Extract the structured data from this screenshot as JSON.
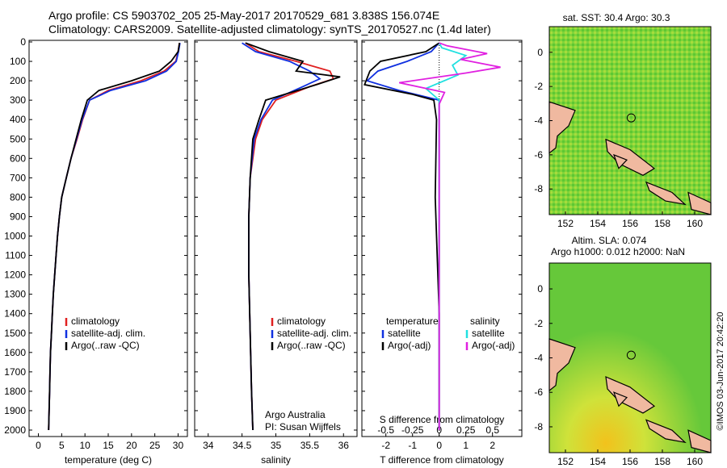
{
  "title_line1": "Argo profile: CS 5903702_205 25-May-2017 20170529_681 3.838S 156.074E",
  "title_line2": "Climatology: CARS2009. Satellite-adjusted climatology: synTS_20170527.nc (1.4d later)",
  "sst_title": "sat. SST: 30.4  Argo: 30.3",
  "sla_title_1": "Altim. SLA: 0.074",
  "sla_title_2": "Argo h1000: 0.012 h2000: NaN",
  "credit": "©IMOS 03-Jun-2017 20:42:20",
  "argo_note_1": "Argo Australia",
  "argo_note_2": "PI: Susan Wijffels",
  "colors": {
    "climatology": "#e02020",
    "satellite": "#1030e0",
    "argo": "#000000",
    "sat_s": "#20e0e0",
    "argo_s": "#e020e0"
  },
  "chart_data": [
    {
      "type": "line",
      "xlabel": "temperature (deg C)",
      "xlim": [
        -2,
        32
      ],
      "ylim": [
        2100,
        0
      ],
      "xticks": [
        0,
        5,
        10,
        15,
        20,
        25,
        30
      ],
      "yticks": [
        0,
        100,
        200,
        300,
        400,
        500,
        600,
        700,
        800,
        900,
        1000,
        1100,
        1200,
        1300,
        1400,
        1500,
        1600,
        1700,
        1800,
        1900,
        2000
      ],
      "legend": [
        "climatology",
        "satellite-adj. clim.",
        "Argo(..raw -QC)"
      ],
      "series": [
        {
          "name": "climatology",
          "color": "climatology",
          "points": [
            [
              30.3,
              5
            ],
            [
              30,
              50
            ],
            [
              29.5,
              100
            ],
            [
              27,
              150
            ],
            [
              22,
              200
            ],
            [
              15,
              250
            ],
            [
              11,
              300
            ],
            [
              9.5,
              400
            ],
            [
              8.3,
              500
            ],
            [
              7,
              600
            ],
            [
              6,
              700
            ],
            [
              5,
              800
            ],
            [
              4.5,
              900
            ],
            [
              4.1,
              1000
            ],
            [
              3.8,
              1100
            ],
            [
              3.5,
              1200
            ],
            [
              3.2,
              1300
            ],
            [
              3,
              1400
            ],
            [
              2.8,
              1500
            ],
            [
              2.6,
              1600
            ],
            [
              2.5,
              1700
            ],
            [
              2.4,
              1800
            ],
            [
              2.3,
              1900
            ],
            [
              2.2,
              2000
            ]
          ]
        },
        {
          "name": "satellite-adj. clim.",
          "color": "satellite",
          "points": [
            [
              30.4,
              5
            ],
            [
              30.1,
              50
            ],
            [
              29.6,
              100
            ],
            [
              27.5,
              150
            ],
            [
              23,
              200
            ],
            [
              15.5,
              250
            ],
            [
              11,
              300
            ],
            [
              9.4,
              400
            ],
            [
              8.2,
              500
            ],
            [
              7,
              600
            ],
            [
              6,
              700
            ],
            [
              5,
              800
            ],
            [
              4.5,
              900
            ],
            [
              4.1,
              1000
            ],
            [
              3.8,
              1100
            ],
            [
              3.5,
              1200
            ],
            [
              3.2,
              1300
            ],
            [
              3,
              1400
            ],
            [
              2.8,
              1500
            ],
            [
              2.6,
              1600
            ],
            [
              2.5,
              1700
            ],
            [
              2.4,
              1800
            ],
            [
              2.3,
              1900
            ],
            [
              2.2,
              2000
            ]
          ]
        },
        {
          "name": "Argo(..raw -QC)",
          "color": "argo",
          "points": [
            [
              30.3,
              5
            ],
            [
              30,
              50
            ],
            [
              28.5,
              100
            ],
            [
              26,
              150
            ],
            [
              20,
              200
            ],
            [
              13,
              250
            ],
            [
              10.5,
              300
            ],
            [
              9.2,
              400
            ],
            [
              8.1,
              500
            ],
            [
              7,
              600
            ],
            [
              6,
              700
            ],
            [
              5,
              800
            ],
            [
              4.5,
              900
            ],
            [
              4.1,
              1000
            ],
            [
              3.8,
              1100
            ],
            [
              3.5,
              1200
            ],
            [
              3.2,
              1300
            ],
            [
              3,
              1400
            ],
            [
              2.8,
              1500
            ],
            [
              2.6,
              1600
            ],
            [
              2.5,
              1700
            ],
            [
              2.4,
              1800
            ],
            [
              2.3,
              1900
            ],
            [
              2.2,
              2000
            ]
          ]
        }
      ]
    },
    {
      "type": "line",
      "xlabel": "salinity",
      "xlim": [
        33.8,
        36.2
      ],
      "ylim": [
        2100,
        0
      ],
      "xticks": [
        34,
        34.5,
        35,
        35.5,
        36
      ],
      "legend": [
        "climatology",
        "satellite-adj. clim.",
        "Argo(..raw -QC)"
      ],
      "series": [
        {
          "name": "climatology",
          "color": "climatology",
          "points": [
            [
              34.55,
              5
            ],
            [
              34.75,
              50
            ],
            [
              35.3,
              100
            ],
            [
              35.8,
              150
            ],
            [
              35.85,
              190
            ],
            [
              35.5,
              230
            ],
            [
              35.0,
              300
            ],
            [
              34.8,
              400
            ],
            [
              34.7,
              500
            ],
            [
              34.62,
              700
            ],
            [
              34.6,
              900
            ],
            [
              34.6,
              1200
            ],
            [
              34.62,
              1500
            ],
            [
              34.64,
              1800
            ],
            [
              34.66,
              2000
            ]
          ]
        },
        {
          "name": "satellite-adj. clim.",
          "color": "satellite",
          "points": [
            [
              34.5,
              5
            ],
            [
              34.7,
              50
            ],
            [
              35.2,
              100
            ],
            [
              35.5,
              150
            ],
            [
              35.65,
              190
            ],
            [
              35.4,
              230
            ],
            [
              34.95,
              300
            ],
            [
              34.78,
              400
            ],
            [
              34.68,
              500
            ],
            [
              34.62,
              700
            ],
            [
              34.6,
              900
            ],
            [
              34.6,
              1200
            ],
            [
              34.62,
              1500
            ],
            [
              34.64,
              1800
            ],
            [
              34.66,
              2000
            ]
          ]
        },
        {
          "name": "Argo(..raw -QC)",
          "color": "argo",
          "points": [
            [
              34.55,
              5
            ],
            [
              34.9,
              50
            ],
            [
              35.4,
              100
            ],
            [
              35.3,
              150
            ],
            [
              35.95,
              180
            ],
            [
              35.6,
              220
            ],
            [
              34.85,
              300
            ],
            [
              34.75,
              400
            ],
            [
              34.66,
              500
            ],
            [
              34.62,
              700
            ],
            [
              34.6,
              900
            ],
            [
              34.6,
              1200
            ],
            [
              34.62,
              1500
            ],
            [
              34.64,
              1800
            ],
            [
              34.66,
              2000
            ]
          ]
        }
      ]
    },
    {
      "type": "line",
      "xlabel": "T difference from climatology",
      "xlabel_top": "S difference from climatology",
      "xlim": [
        -2.9,
        3.1
      ],
      "ylim": [
        2100,
        0
      ],
      "xticks": [
        -2,
        -1,
        0,
        1,
        2
      ],
      "xticks_top": [
        -0.5,
        -0.25,
        0,
        0.25,
        0.5
      ],
      "legend": [
        "temperature",
        "satellite",
        "Argo(-adj)",
        "salinity",
        "satellite",
        "Argo(-adj)"
      ],
      "series": [
        {
          "name": "temperature satellite",
          "color": "satellite",
          "points": [
            [
              0,
              5
            ],
            [
              -0.3,
              50
            ],
            [
              -1.2,
              100
            ],
            [
              -2.3,
              150
            ],
            [
              -2.7,
              200
            ],
            [
              -1.5,
              250
            ],
            [
              0,
              300
            ],
            [
              0,
              2000
            ]
          ]
        },
        {
          "name": "temperature Argo(-adj)",
          "color": "argo",
          "points": [
            [
              0,
              5
            ],
            [
              -0.5,
              50
            ],
            [
              -2.2,
              100
            ],
            [
              -2.6,
              150
            ],
            [
              -2.8,
              220
            ],
            [
              -1.0,
              270
            ],
            [
              -0.2,
              300
            ],
            [
              -0.1,
              400
            ],
            [
              -0.15,
              800
            ],
            [
              -0.1,
              1000
            ],
            [
              0,
              1400
            ],
            [
              0,
              2000
            ]
          ]
        },
        {
          "name": "salinity satellite",
          "color": "sat_s",
          "points": [
            [
              0,
              5
            ],
            [
              0.1,
              30
            ],
            [
              1.0,
              70
            ],
            [
              0.5,
              120
            ],
            [
              0.7,
              170
            ],
            [
              -0.5,
              240
            ],
            [
              0,
              300
            ],
            [
              0,
              2000
            ]
          ]
        },
        {
          "name": "salinity Argo(-adj)",
          "color": "argo_s",
          "points": [
            [
              0,
              5
            ],
            [
              0.3,
              20
            ],
            [
              1.8,
              60
            ],
            [
              0.8,
              90
            ],
            [
              2.3,
              130
            ],
            [
              1.0,
              160
            ],
            [
              -1.5,
              210
            ],
            [
              0.2,
              260
            ],
            [
              0,
              320
            ],
            [
              0,
              2000
            ]
          ]
        }
      ]
    },
    {
      "type": "heatmap",
      "title": "sat. SST: 30.4  Argo: 30.3",
      "xticks": [
        152,
        154,
        156,
        158,
        160
      ],
      "yticks": [
        0,
        -2,
        -4,
        -6,
        -8
      ],
      "xlim": [
        151,
        161
      ],
      "ylim": [
        -9.5,
        1.5
      ],
      "marker": [
        156.07,
        -3.84
      ]
    },
    {
      "type": "heatmap",
      "title": "Altim. SLA: 0.074",
      "xticks": [
        152,
        154,
        156,
        158,
        160
      ],
      "yticks": [
        0,
        -2,
        -4,
        -6,
        -8
      ],
      "xlim": [
        151,
        161
      ],
      "ylim": [
        -9.5,
        1.5
      ],
      "marker": [
        156.07,
        -3.84
      ]
    }
  ]
}
